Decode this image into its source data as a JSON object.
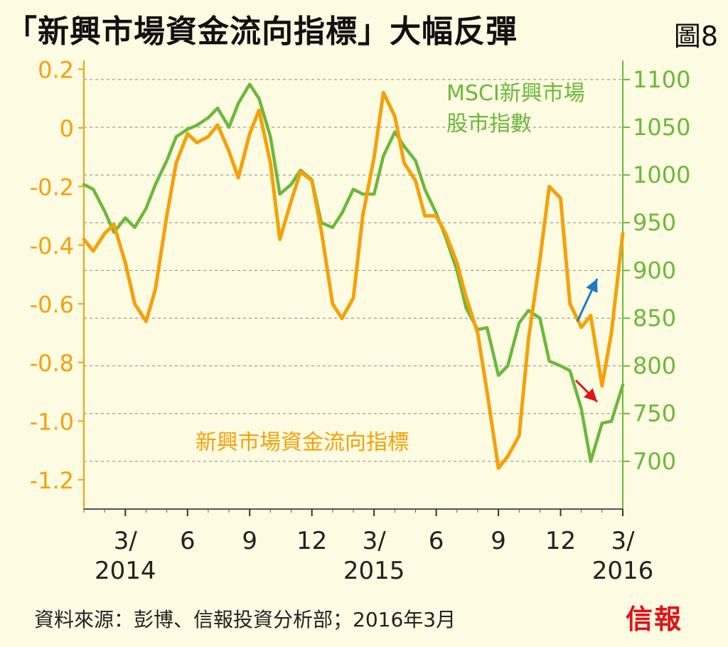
{
  "header": {
    "title": "「新興市場資金流向指標」大幅反彈",
    "figure_no": "圖8"
  },
  "footer": {
    "source": "資料來源：彭博、信報投資分析部；2016年3月",
    "logo": "信報"
  },
  "colors": {
    "background": "#fdfbe1",
    "orange": "#f5a10a",
    "green": "#6cb83a",
    "grid": "#888888",
    "blue_arrow": "#1a7bc4",
    "red_arrow": "#e0141a"
  },
  "chart_data": {
    "type": "line",
    "x_ticks": [
      {
        "label": "3/",
        "year": "2014",
        "x": "2014-03"
      },
      {
        "label": "6",
        "year": "",
        "x": "2014-06"
      },
      {
        "label": "9",
        "year": "",
        "x": "2014-09"
      },
      {
        "label": "12",
        "year": "",
        "x": "2014-12"
      },
      {
        "label": "3/",
        "year": "2015",
        "x": "2015-03"
      },
      {
        "label": "6",
        "year": "",
        "x": "2015-06"
      },
      {
        "label": "9",
        "year": "",
        "x": "2015-09"
      },
      {
        "label": "12",
        "year": "",
        "x": "2015-12"
      },
      {
        "label": "3/",
        "year": "2016",
        "x": "2016-03"
      }
    ],
    "x_range": [
      "2014-01",
      "2016-03"
    ],
    "left_axis": {
      "ticks": [
        "0.2",
        "0",
        "-0.2",
        "-0.4",
        "-0.6",
        "-0.8",
        "-1.0",
        "-1.2"
      ],
      "range": [
        -1.3,
        0.23
      ],
      "color": "orange"
    },
    "right_axis": {
      "ticks": [
        "1100",
        "1050",
        "1000",
        "950",
        "900",
        "850",
        "800",
        "750",
        "700"
      ],
      "range": [
        650,
        1120
      ],
      "color": "green"
    },
    "grid": true,
    "series": [
      {
        "name": "新興市場資金流向指標",
        "axis": "left",
        "color": "orange",
        "x": [
          "2014-01-01",
          "2014-01-15",
          "2014-02-01",
          "2014-02-15",
          "2014-03-01",
          "2014-03-15",
          "2014-04-01",
          "2014-04-15",
          "2014-05-01",
          "2014-05-15",
          "2014-06-01",
          "2014-06-15",
          "2014-07-01",
          "2014-07-15",
          "2014-08-01",
          "2014-08-15",
          "2014-09-01",
          "2014-09-15",
          "2014-10-01",
          "2014-10-15",
          "2014-11-01",
          "2014-11-15",
          "2014-12-01",
          "2014-12-15",
          "2015-01-01",
          "2015-01-15",
          "2015-02-01",
          "2015-02-15",
          "2015-03-01",
          "2015-03-15",
          "2015-04-01",
          "2015-04-15",
          "2015-05-01",
          "2015-05-15",
          "2015-06-01",
          "2015-06-15",
          "2015-07-01",
          "2015-07-15",
          "2015-08-01",
          "2015-08-15",
          "2015-09-01",
          "2015-09-15",
          "2015-10-01",
          "2015-10-15",
          "2015-11-01",
          "2015-11-15",
          "2015-12-01",
          "2015-12-15",
          "2016-01-01",
          "2016-01-15",
          "2016-02-01",
          "2016-02-15",
          "2016-03-01"
        ],
        "values": [
          -0.38,
          -0.42,
          -0.36,
          -0.33,
          -0.46,
          -0.6,
          -0.66,
          -0.55,
          -0.3,
          -0.12,
          -0.02,
          -0.05,
          -0.03,
          0.01,
          -0.08,
          -0.17,
          -0.02,
          0.06,
          -0.12,
          -0.38,
          -0.25,
          -0.15,
          -0.18,
          -0.35,
          -0.6,
          -0.65,
          -0.58,
          -0.3,
          -0.1,
          0.12,
          0.04,
          -0.12,
          -0.18,
          -0.3,
          -0.3,
          -0.36,
          -0.46,
          -0.58,
          -0.7,
          -0.9,
          -1.16,
          -1.12,
          -1.05,
          -0.72,
          -0.45,
          -0.2,
          -0.24,
          -0.6,
          -0.68,
          -0.64,
          -0.88,
          -0.7,
          -0.36
        ]
      },
      {
        "name": "MSCI新興市場股市指數",
        "axis": "right",
        "color": "green",
        "x": [
          "2014-01-01",
          "2014-01-15",
          "2014-02-01",
          "2014-02-15",
          "2014-03-01",
          "2014-03-15",
          "2014-04-01",
          "2014-04-15",
          "2014-05-01",
          "2014-05-15",
          "2014-06-01",
          "2014-06-15",
          "2014-07-01",
          "2014-07-15",
          "2014-08-01",
          "2014-08-15",
          "2014-09-01",
          "2014-09-15",
          "2014-10-01",
          "2014-10-15",
          "2014-11-01",
          "2014-11-15",
          "2014-12-01",
          "2014-12-15",
          "2015-01-01",
          "2015-01-15",
          "2015-02-01",
          "2015-02-15",
          "2015-03-01",
          "2015-03-15",
          "2015-04-01",
          "2015-04-15",
          "2015-05-01",
          "2015-05-15",
          "2015-06-01",
          "2015-06-15",
          "2015-07-01",
          "2015-07-15",
          "2015-08-01",
          "2015-08-15",
          "2015-09-01",
          "2015-09-15",
          "2015-10-01",
          "2015-10-15",
          "2015-11-01",
          "2015-11-15",
          "2015-12-01",
          "2015-12-15",
          "2016-01-01",
          "2016-01-15",
          "2016-02-01",
          "2016-02-15",
          "2016-03-01"
        ],
        "values": [
          990,
          985,
          962,
          940,
          955,
          945,
          965,
          990,
          1015,
          1040,
          1048,
          1052,
          1060,
          1070,
          1050,
          1075,
          1095,
          1080,
          1040,
          980,
          990,
          1005,
          995,
          950,
          945,
          960,
          985,
          980,
          980,
          1020,
          1045,
          1030,
          1015,
          985,
          960,
          935,
          900,
          860,
          838,
          840,
          790,
          800,
          845,
          858,
          850,
          805,
          800,
          795,
          755,
          700,
          740,
          742,
          780
        ]
      }
    ]
  }
}
